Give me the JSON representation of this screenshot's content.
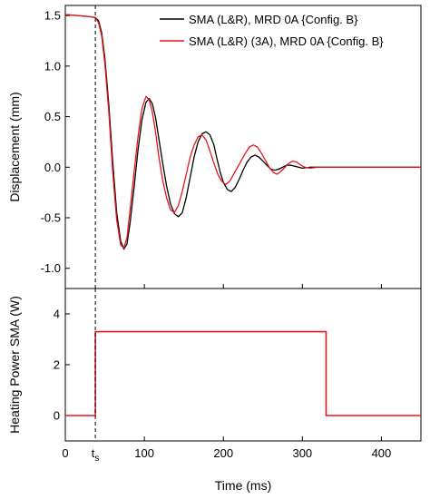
{
  "chart_data": [
    {
      "type": "line",
      "panel": "top",
      "ylabel": "Displacement (mm)",
      "xlim": [
        0,
        450
      ],
      "ylim": [
        -1.2,
        1.6
      ],
      "yticks": [
        -1.0,
        -0.5,
        0.0,
        0.5,
        1.0,
        1.5
      ],
      "yticklabels": [
        "-1.0",
        "-0.5",
        "0.0",
        "0.5",
        "1.0",
        "1.5"
      ],
      "grid": false,
      "legend_position": "top-right",
      "series": [
        {
          "name": "SMA (L&R), MRD 0A {Config. B}",
          "color": "#000000",
          "x": [
            0,
            15,
            30,
            38,
            42,
            46,
            50,
            55,
            60,
            65,
            70,
            74,
            78,
            82,
            87,
            92,
            97,
            102,
            106,
            110,
            114,
            118,
            123,
            128,
            133,
            138,
            143,
            148,
            153,
            158,
            163,
            168,
            173,
            178,
            183,
            188,
            192,
            196,
            200,
            205,
            210,
            215,
            220,
            225,
            230,
            235,
            240,
            245,
            250,
            255,
            260,
            265,
            270,
            275,
            280,
            285,
            290,
            295,
            300,
            310,
            320,
            330,
            340,
            360,
            380,
            400,
            420,
            450
          ],
          "y": [
            1.51,
            1.5,
            1.49,
            1.48,
            1.45,
            1.33,
            1.08,
            0.62,
            0.05,
            -0.45,
            -0.73,
            -0.81,
            -0.76,
            -0.55,
            -0.2,
            0.17,
            0.47,
            0.64,
            0.68,
            0.63,
            0.5,
            0.3,
            0.05,
            -0.18,
            -0.36,
            -0.46,
            -0.49,
            -0.45,
            -0.3,
            -0.1,
            0.1,
            0.25,
            0.33,
            0.35,
            0.32,
            0.22,
            0.08,
            -0.05,
            -0.15,
            -0.22,
            -0.24,
            -0.2,
            -0.12,
            -0.03,
            0.05,
            0.1,
            0.12,
            0.1,
            0.06,
            0.02,
            -0.02,
            -0.03,
            -0.02,
            0.0,
            0.02,
            0.02,
            0.01,
            0.0,
            -0.01,
            0.0,
            0.0,
            0.0,
            0.0,
            0.0,
            0.0,
            0.0,
            0.0,
            0.0
          ]
        },
        {
          "name": "SMA (L&R) (3A), MRD 0A {Config. B}",
          "color": "#e8141b",
          "x": [
            0,
            15,
            30,
            38,
            42,
            46,
            50,
            55,
            60,
            65,
            70,
            74,
            78,
            82,
            87,
            92,
            97,
            102,
            106,
            110,
            114,
            118,
            123,
            128,
            133,
            138,
            143,
            148,
            153,
            158,
            163,
            168,
            173,
            178,
            183,
            188,
            193,
            198,
            203,
            208,
            213,
            218,
            223,
            228,
            233,
            238,
            243,
            248,
            253,
            258,
            263,
            268,
            273,
            278,
            283,
            288,
            293,
            298,
            303,
            310,
            320,
            330,
            340,
            360,
            380,
            400,
            420,
            450
          ],
          "y": [
            1.51,
            1.5,
            1.49,
            1.48,
            1.43,
            1.3,
            1.03,
            0.55,
            -0.05,
            -0.52,
            -0.77,
            -0.8,
            -0.7,
            -0.42,
            -0.05,
            0.3,
            0.58,
            0.7,
            0.67,
            0.55,
            0.36,
            0.12,
            -0.12,
            -0.3,
            -0.42,
            -0.45,
            -0.38,
            -0.24,
            -0.07,
            0.1,
            0.22,
            0.3,
            0.32,
            0.27,
            0.16,
            0.04,
            -0.07,
            -0.14,
            -0.17,
            -0.14,
            -0.07,
            0.0,
            0.07,
            0.14,
            0.2,
            0.22,
            0.2,
            0.14,
            0.07,
            0.0,
            -0.05,
            -0.07,
            -0.04,
            0.0,
            0.04,
            0.06,
            0.05,
            0.02,
            0.0,
            -0.01,
            0.0,
            0.0,
            0.0,
            0.0,
            0.0,
            0.0,
            0.0,
            0.0
          ]
        }
      ],
      "annotations": [
        {
          "type": "vline",
          "x": 38,
          "style": "dashed"
        }
      ]
    },
    {
      "type": "line",
      "panel": "bottom",
      "ylabel": "Heating Power SMA (W)",
      "xlabel": "Time (ms)",
      "xlim": [
        0,
        450
      ],
      "ylim": [
        -1,
        5
      ],
      "xticks": [
        0,
        100,
        200,
        300,
        400
      ],
      "xticklabels": [
        "0",
        "100",
        "200",
        "300",
        "400"
      ],
      "yticks": [
        0,
        2,
        4
      ],
      "yticklabels": [
        "0",
        "2",
        "4"
      ],
      "grid": false,
      "series": [
        {
          "color": "#e8141b",
          "step": true,
          "x": [
            0,
            38,
            38,
            330,
            330,
            450
          ],
          "y": [
            0,
            0,
            3.3,
            3.3,
            0,
            0
          ]
        }
      ],
      "annotations": [
        {
          "type": "vline",
          "x": 38,
          "style": "dashed",
          "label": "t",
          "label_sub": "s"
        }
      ]
    }
  ]
}
